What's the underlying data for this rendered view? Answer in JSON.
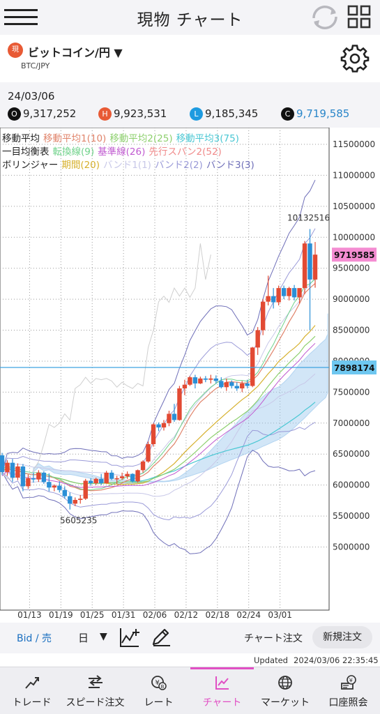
{
  "header": {
    "title": "現物 チャート",
    "menu_icon": "hamburger-icon",
    "refresh_icon": "refresh-icon",
    "grid_icon": "grid-icon"
  },
  "product": {
    "badge": "現",
    "name": "ビットコイン/円 ▼",
    "pair": "BTC/JPY",
    "settings_icon": "gear-icon"
  },
  "ohlc": {
    "date": "24/03/06",
    "items": [
      {
        "key": "O",
        "value": "9,317,252",
        "color": "#111111",
        "text_color": "#222222"
      },
      {
        "key": "H",
        "value": "9,923,531",
        "color": "#e85a35",
        "text_color": "#222222"
      },
      {
        "key": "L",
        "value": "9,185,345",
        "color": "#1e9be0",
        "text_color": "#222222"
      },
      {
        "key": "C",
        "value": "9,719,585",
        "color": "#111111",
        "text_color": "#2a86c9"
      }
    ]
  },
  "legend": {
    "lines": [
      [
        {
          "text": "移動平均",
          "color": "#222222"
        },
        {
          "text": "移動平均1(10)",
          "color": "#e0836a"
        },
        {
          "text": "移動平均2(25)",
          "color": "#8ed06e"
        },
        {
          "text": "移動平均3(75)",
          "color": "#49c7d3"
        }
      ],
      [
        {
          "text": "一目均衡表",
          "color": "#222222"
        },
        {
          "text": "転換線(9)",
          "color": "#6fd28a"
        },
        {
          "text": "基準線(26)",
          "color": "#c05ad0"
        },
        {
          "text": "先行スパン2(52)",
          "color": "#f08a8a"
        }
      ],
      [
        {
          "text": "ボリンジャー",
          "color": "#222222"
        },
        {
          "text": "期間(20)",
          "color": "#d6b02c"
        },
        {
          "text": "バンド1(1)",
          "color": "#c8c8e8"
        },
        {
          "text": "バンド2(2)",
          "color": "#9a9ad8"
        },
        {
          "text": "バンド3(3)",
          "color": "#6e6eb8"
        }
      ]
    ]
  },
  "chart_data": {
    "type": "candlestick",
    "x_tick_labels": [
      "01/13",
      "01/19",
      "01/25",
      "01/31",
      "02/06",
      "02/12",
      "02/18",
      "02/24",
      "03/01"
    ],
    "y_tick_labels": [
      "11500000",
      "11000000",
      "10500000",
      "10000000",
      "9500000",
      "9000000",
      "8500000",
      "8000000",
      "7500000",
      "7000000",
      "6500000",
      "6000000",
      "5500000",
      "5000000"
    ],
    "ylim": [
      4700000,
      11700000
    ],
    "candles_ohlc": [
      [
        6480000,
        6520000,
        6160000,
        6210000
      ],
      [
        6210000,
        6400000,
        6150000,
        6360000
      ],
      [
        6360000,
        6420000,
        6050000,
        6120000
      ],
      [
        6120000,
        6350000,
        6080000,
        6300000
      ],
      [
        6300000,
        6340000,
        5900000,
        5980000
      ],
      [
        5980000,
        6170000,
        5940000,
        6110000
      ],
      [
        6110000,
        6200000,
        6040000,
        6090000
      ],
      [
        6090000,
        6240000,
        6050000,
        6200000
      ],
      [
        6200000,
        6220000,
        6020000,
        6050000
      ],
      [
        6050000,
        6190000,
        5900000,
        5960000
      ],
      [
        5960000,
        6010000,
        5900000,
        5990000
      ],
      [
        5990000,
        6060000,
        5880000,
        5920000
      ],
      [
        5920000,
        5980000,
        5780000,
        5820000
      ],
      [
        5820000,
        5880000,
        5605235,
        5700000
      ],
      [
        5700000,
        5800000,
        5660000,
        5760000
      ],
      [
        5760000,
        5840000,
        5700000,
        5780000
      ],
      [
        5780000,
        6100000,
        5760000,
        6070000
      ],
      [
        6070000,
        6110000,
        5990000,
        6030000
      ],
      [
        6030000,
        6120000,
        6000000,
        6100000
      ],
      [
        6100000,
        6180000,
        6000000,
        6030000
      ],
      [
        6030000,
        6230000,
        6020000,
        6200000
      ],
      [
        6200000,
        6240000,
        6080000,
        6100000
      ],
      [
        6100000,
        6150000,
        6020000,
        6110000
      ],
      [
        6110000,
        6200000,
        6080000,
        6140000
      ],
      [
        6140000,
        6220000,
        6100000,
        6180000
      ],
      [
        6180000,
        6190000,
        6040000,
        6060000
      ],
      [
        6060000,
        6250000,
        6040000,
        6240000
      ],
      [
        6240000,
        6400000,
        6200000,
        6380000
      ],
      [
        6380000,
        6700000,
        6360000,
        6660000
      ],
      [
        6660000,
        7000000,
        6620000,
        6980000
      ],
      [
        6980000,
        7010000,
        6870000,
        6930000
      ],
      [
        6930000,
        7050000,
        6880000,
        7000000
      ],
      [
        7000000,
        7200000,
        6950000,
        7150000
      ],
      [
        7150000,
        7310000,
        7020000,
        7050000
      ],
      [
        7050000,
        7600000,
        7040000,
        7560000
      ],
      [
        7560000,
        7700000,
        7450000,
        7620000
      ],
      [
        7620000,
        7760000,
        7600000,
        7740000
      ],
      [
        7740000,
        7780000,
        7560000,
        7640000
      ],
      [
        7640000,
        7750000,
        7630000,
        7720000
      ],
      [
        7720000,
        7760000,
        7660000,
        7700000
      ],
      [
        7700000,
        7780000,
        7640000,
        7720000
      ],
      [
        7720000,
        7770000,
        7640000,
        7680000
      ],
      [
        7680000,
        7740000,
        7560000,
        7580000
      ],
      [
        7580000,
        7720000,
        7520000,
        7660000
      ],
      [
        7660000,
        7690000,
        7560000,
        7600000
      ],
      [
        7600000,
        7660000,
        7520000,
        7560000
      ],
      [
        7560000,
        7680000,
        7500000,
        7640000
      ],
      [
        7640000,
        7700000,
        7560000,
        7600000
      ],
      [
        7600000,
        8230000,
        7580000,
        8220000
      ],
      [
        8220000,
        8550000,
        8100000,
        8500000
      ],
      [
        8500000,
        9000000,
        8420000,
        8960000
      ],
      [
        8960000,
        9380000,
        8900000,
        9050000
      ],
      [
        9050000,
        9180000,
        8850000,
        8950000
      ],
      [
        8950000,
        9220000,
        8900000,
        9180000
      ],
      [
        9180000,
        9220000,
        9000000,
        9050000
      ],
      [
        9050000,
        9200000,
        8980000,
        9180000
      ],
      [
        9180000,
        9230000,
        8980000,
        9030000
      ],
      [
        9030000,
        9160000,
        8930000,
        9180000
      ],
      [
        9180000,
        9940000,
        9080000,
        9900000
      ],
      [
        9900000,
        10132516,
        8500000,
        9317252
      ],
      [
        9317252,
        9923531,
        9185345,
        9719585
      ]
    ],
    "annotations": [
      {
        "text": "10132516",
        "y": 10132516
      },
      {
        "text": "5605235",
        "y": 5605235
      }
    ],
    "current_price_label": "9719585",
    "crosshair_label": "7898174",
    "crosshair_value": 7898174,
    "colors": {
      "up": "#e24a33",
      "down": "#2b8fd6",
      "current_label_bg": "#f48dd2",
      "crosshair_label_bg": "#6ec7f0"
    }
  },
  "toolbar": {
    "bid_label": "Bid / 売",
    "timeframe": "日",
    "caret": "▼",
    "indicator_icon": "add-indicator-icon",
    "draw_icon": "pencil-icon",
    "chart_order_label": "チャート注文",
    "new_order_label": "新規注文"
  },
  "status": {
    "updated_label": "Updated",
    "updated_time": "2024/03/06  22:35:45"
  },
  "nav": {
    "items": [
      {
        "label": "トレード",
        "icon": "trade-icon"
      },
      {
        "label": "スピード注文",
        "icon": "speed-order-icon"
      },
      {
        "label": "レート",
        "icon": "rate-icon"
      },
      {
        "label": "チャート",
        "icon": "chart-icon"
      },
      {
        "label": "マーケット",
        "icon": "market-icon"
      },
      {
        "label": "口座照会",
        "icon": "account-icon"
      }
    ],
    "active_color": "#e14fc4"
  }
}
